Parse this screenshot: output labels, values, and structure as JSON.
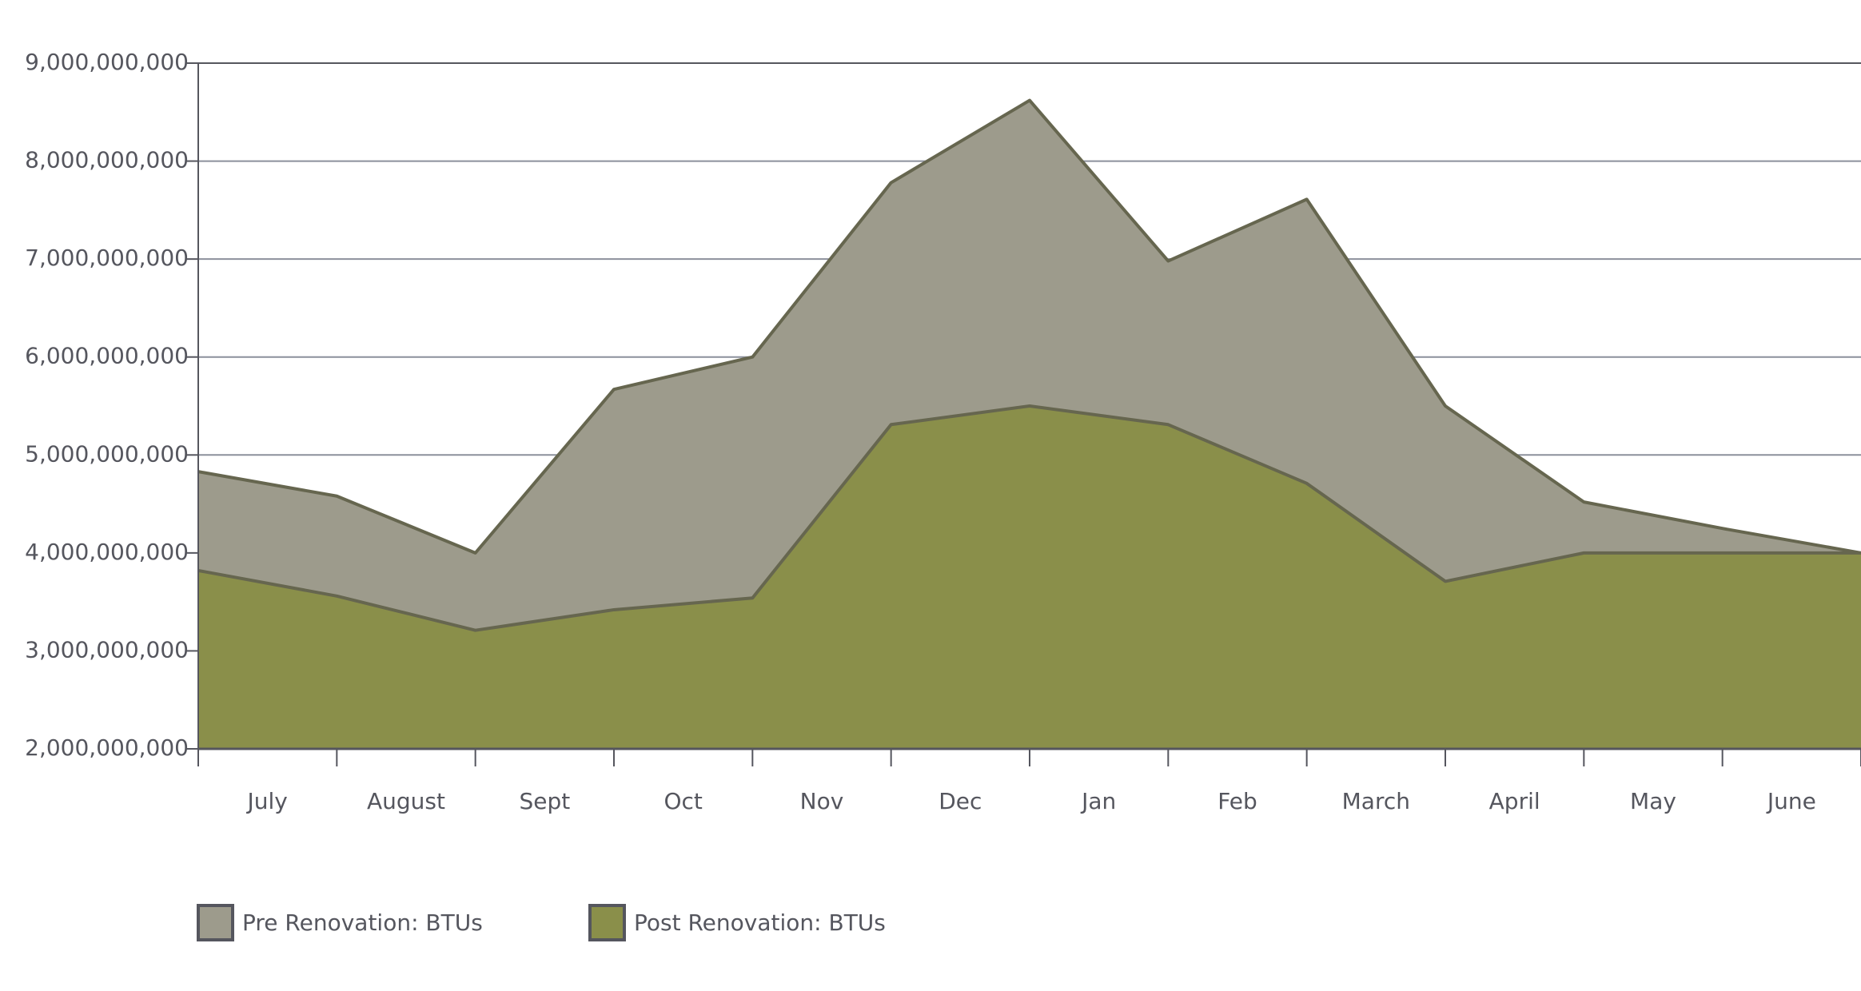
{
  "chart_data": {
    "type": "area",
    "categories": [
      "July",
      "August",
      "Sept",
      "Oct",
      "Nov",
      "Dec",
      "Jan",
      "Feb",
      "March",
      "April",
      "May",
      "June",
      null
    ],
    "series": [
      {
        "name": "Pre Renovation: BTUs",
        "color": "#9d9b8c",
        "values": [
          4830000000,
          4580000000,
          4000000000,
          5670000000,
          6000000000,
          7780000000,
          8620000000,
          6980000000,
          7610000000,
          5500000000,
          4520000000,
          4250000000,
          4000000000
        ]
      },
      {
        "name": "Post Renovation: BTUs",
        "color": "#8a8f4a",
        "values": [
          3820000000,
          3560000000,
          3210000000,
          3420000000,
          3540000000,
          5310000000,
          5500000000,
          5310000000,
          4710000000,
          3710000000,
          4000000000,
          4000000000,
          4000000000
        ]
      }
    ],
    "ylim": [
      2000000000,
      9000000000
    ],
    "yticks": [
      {
        "value": 2000000000,
        "label": "2,000,000,000"
      },
      {
        "value": 3000000000,
        "label": "3,000,000,000"
      },
      {
        "value": 4000000000,
        "label": "4,000,000,000"
      },
      {
        "value": 5000000000,
        "label": "5,000,000,000"
      },
      {
        "value": 6000000000,
        "label": "6,000,000,000"
      },
      {
        "value": 7000000000,
        "label": "7,000,000,000"
      },
      {
        "value": 8000000000,
        "label": "8,000,000,000"
      },
      {
        "value": 9000000000,
        "label": "9,000,000,000"
      }
    ],
    "grid": true,
    "legend": "bottom"
  }
}
